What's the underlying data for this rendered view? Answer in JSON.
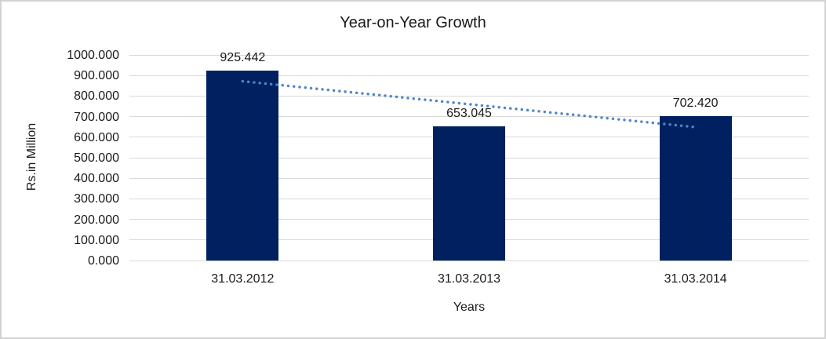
{
  "window": {
    "background": "#FFFFFF",
    "border_color": "#D2D2D2"
  },
  "chart_data": {
    "type": "bar",
    "title": "Year-on-Year Growth",
    "categories": [
      "31.03.2012",
      "31.03.2013",
      "31.03.2014"
    ],
    "values": [
      925.442,
      653.045,
      702.42
    ],
    "xlabel": "Years",
    "ylabel": "Rs.in Million",
    "ylim": [
      0,
      1000
    ],
    "ytick_interval": 100,
    "ytick_decimals": 3,
    "datalabel_decimals": 3,
    "grid": true,
    "legend": "none",
    "bar_color": "#002060",
    "gridline_color": "#D9D9D9",
    "text_color": "#1A1A1A",
    "trendline": {
      "type": "linear",
      "style": "dotted",
      "color": "#4F86C6"
    }
  }
}
